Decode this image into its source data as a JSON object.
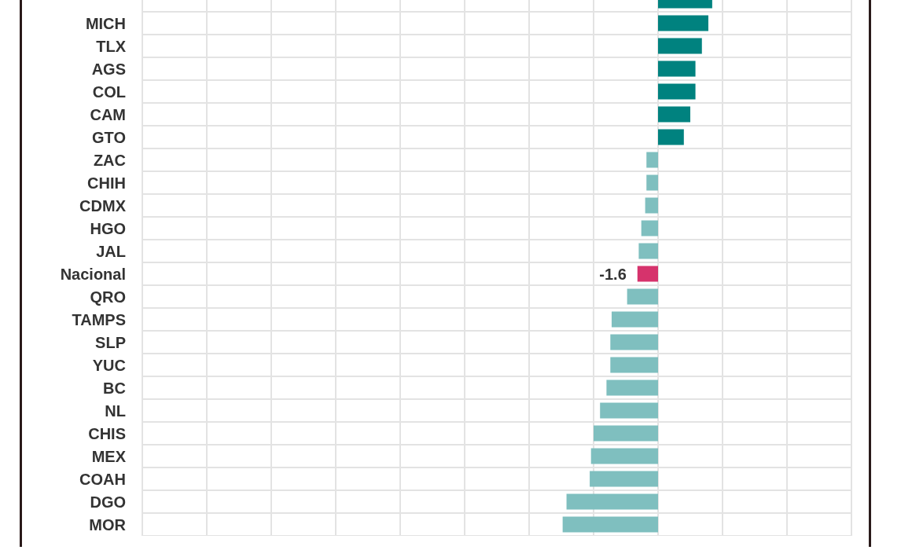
{
  "chart_data": {
    "type": "bar",
    "orientation": "horizontal",
    "grid": true,
    "tick_labels": "y",
    "categories": [
      null,
      "MICH",
      "TLX",
      "AGS",
      "COL",
      "CAM",
      "GTO",
      "ZAC",
      "CHIH",
      "CDMX",
      "HGO",
      "JAL",
      "Nacional",
      "QRO",
      "TAMPS",
      "SLP",
      "YUC",
      "BC",
      "NL",
      "CHIS",
      "MEX",
      "COAH",
      "DGO",
      "MOR"
    ],
    "values": [
      4.2,
      3.9,
      3.4,
      2.9,
      2.9,
      2.5,
      2.0,
      -0.9,
      -0.9,
      -1.0,
      -1.3,
      -1.5,
      -1.6,
      -2.4,
      -3.6,
      -3.7,
      -3.7,
      -4.0,
      -4.5,
      -5.0,
      -5.2,
      -5.3,
      -7.1,
      -7.4
    ],
    "colors": [
      "#00827f",
      "#00827f",
      "#00827f",
      "#00827f",
      "#00827f",
      "#00827f",
      "#00827f",
      "#7fbfbf",
      "#7fbfbf",
      "#7fbfbf",
      "#7fbfbf",
      "#7fbfbf",
      "#d6336c",
      "#7fbfbf",
      "#7fbfbf",
      "#7fbfbf",
      "#7fbfbf",
      "#7fbfbf",
      "#7fbfbf",
      "#7fbfbf",
      "#7fbfbf",
      "#7fbfbf",
      "#7fbfbf",
      "#7fbfbf"
    ],
    "value_labels": [
      null,
      null,
      null,
      null,
      null,
      null,
      null,
      null,
      null,
      null,
      null,
      null,
      "-1.6",
      null,
      null,
      null,
      null,
      null,
      null,
      null,
      null,
      null,
      null,
      null
    ]
  }
}
